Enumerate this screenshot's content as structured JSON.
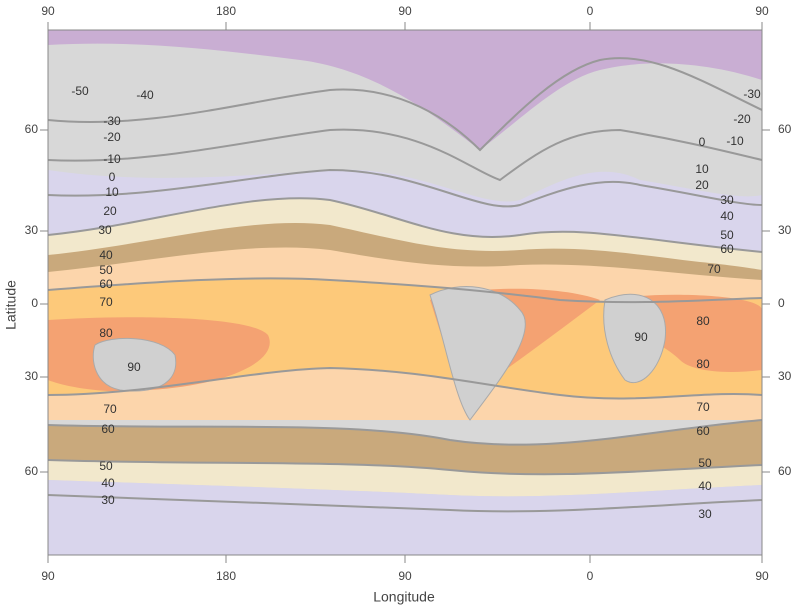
{
  "map": {
    "x_axis_label": "Longitude",
    "y_axis_label": "Latitude",
    "top_ticks": [
      "90",
      "180",
      "90",
      "0",
      "90"
    ],
    "bottom_ticks": [
      "90",
      "180",
      "90",
      "0",
      "90"
    ],
    "left_ticks": [
      "60",
      "30",
      "0",
      "30",
      "60"
    ],
    "right_ticks": [
      "60",
      "30",
      "0",
      "30",
      "60"
    ],
    "contour_labels_left": [
      "-50",
      "-40",
      "-30",
      "-20",
      "-10",
      "0",
      "10",
      "20",
      "30",
      "40",
      "50",
      "60",
      "70",
      "80",
      "90",
      "70",
      "60",
      "50",
      "40",
      "30"
    ],
    "contour_labels_right": [
      "-30",
      "-20",
      "-10",
      "0",
      "10",
      "20",
      "30",
      "40",
      "50",
      "60",
      "70",
      "80",
      "90",
      "80",
      "70",
      "60",
      "50",
      "40",
      "30"
    ]
  }
}
